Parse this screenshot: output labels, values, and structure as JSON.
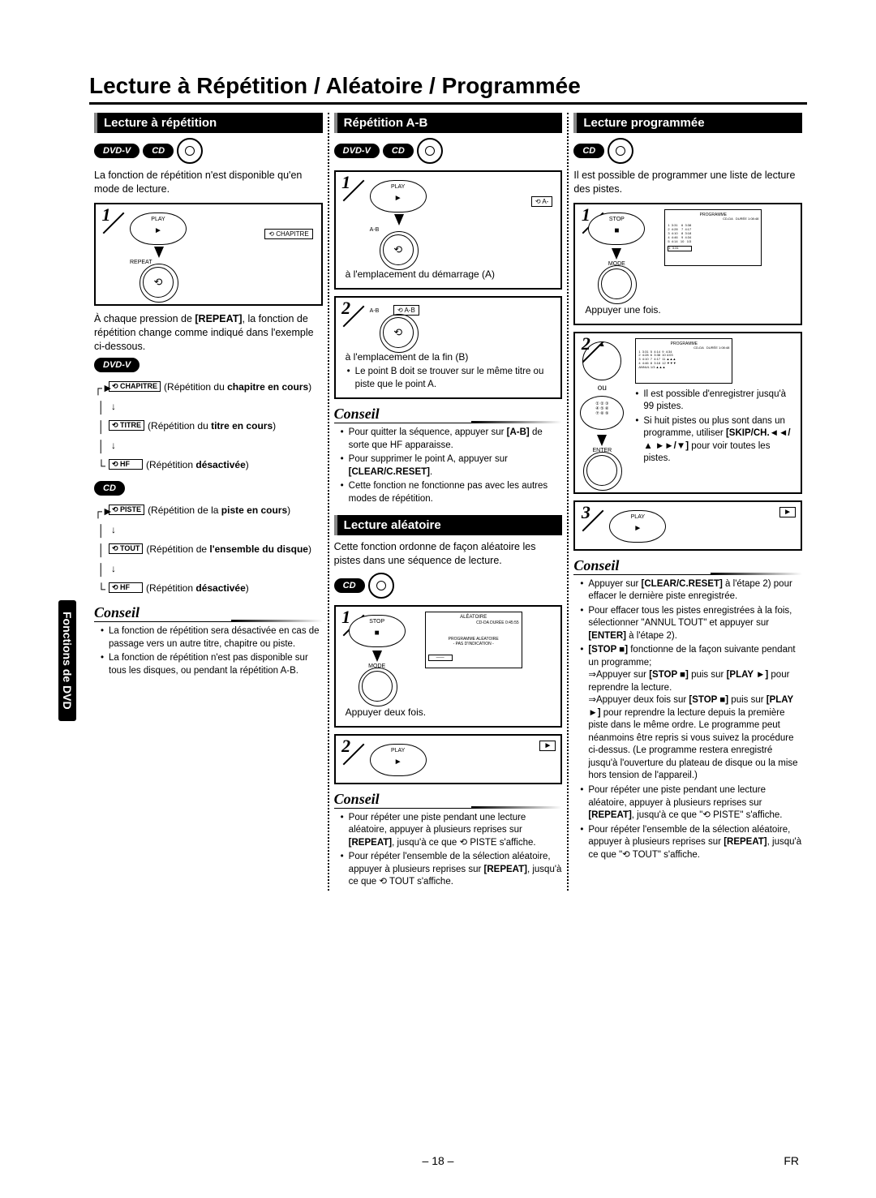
{
  "page": {
    "title": "Lecture à Répétition / Aléatoire / Programmée",
    "number": "– 18 –",
    "lang": "FR",
    "sidetab": "Fonctions de DVD"
  },
  "col1": {
    "header": "Lecture à répétition",
    "intro": "La fonction de répétition n'est disponible qu'en mode de lecture.",
    "step1_play": "PLAY",
    "step1_repeat": "REPEAT",
    "step1_tag": "CHAPITRE",
    "explain": "À chaque pression de [REPEAT], la fonction de répétition change comme indiqué dans l'exemple ci-dessous.",
    "dvd_modes": [
      {
        "label": "CHAPITRE",
        "desc": "(Répétition du <b>chapitre en cours</b>)"
      },
      {
        "label": "TITRE",
        "desc": "(Répétition du <b>titre en cours</b>)"
      },
      {
        "label": "HF",
        "desc": "(Répétition <b>désactivée</b>)"
      }
    ],
    "cd_modes": [
      {
        "label": "PISTE",
        "desc": "(Répétition de la <b>piste en cours</b>)"
      },
      {
        "label": "TOUT",
        "desc": "(Répétition de <b>l'ensemble du disque</b>)"
      },
      {
        "label": "HF",
        "desc": "(Répétition <b>désactivée</b>)"
      }
    ],
    "conseil": "Conseil",
    "tips": [
      "La fonction de répétition sera désactivée en cas de passage vers un autre titre, chapitre ou piste.",
      "La fonction de répétition n'est pas disponible sur tous les disques, ou pendant la répétition A-B."
    ]
  },
  "col2a": {
    "header": "Répétition A-B",
    "step1_play": "PLAY",
    "step1_ab": "A-B",
    "step1_tag": "A-",
    "step1_caption": "à l'emplacement du démarrage (A)",
    "step2_ab": "A-B",
    "step2_tag": "A-B",
    "step2_caption": "à l'emplacement de la fin (B)",
    "step2_note": "Le point B doit se trouver sur le même titre ou piste que le point A.",
    "conseil": "Conseil",
    "tips": [
      "Pour quitter la séquence, appuyer sur <b>[A-B]</b> de sorte que HF apparaisse.",
      "Pour supprimer le point A, appuyer sur <b>[CLEAR/C.RESET]</b>.",
      "Cette fonction ne fonctionne pas avec les autres modes de répétition."
    ]
  },
  "col2b": {
    "header": "Lecture aléatoire",
    "intro": "Cette fonction ordonne de façon aléatoire les pistes dans une séquence de lecture.",
    "step1_stop": "STOP",
    "step1_mode": "MODE",
    "step1_disp_title": "ALÉATOIRE",
    "step1_disp_sub": "CD-DA   DURÉE 0:45:55",
    "step1_disp_body": "PROGRAMME ALÉATOIRE\n- PAS D'INDICATION -",
    "step1_caption": "Appuyer deux fois.",
    "step2_play": "PLAY",
    "conseil": "Conseil",
    "tips": [
      "Pour répéter une piste pendant une lecture aléatoire, appuyer à plusieurs reprises sur <b>[REPEAT]</b>, jusqu'à ce que ⟲ PISTE s'affiche.",
      "Pour répéter l'ensemble de la sélection aléatoire, appuyer à plusieurs reprises sur <b>[REPEAT]</b>, jusqu'à ce que ⟲ TOUT s'affiche."
    ]
  },
  "col3": {
    "header": "Lecture programmée",
    "intro": "Il est possible de programmer une liste de lecture des pistes.",
    "step1_stop": "STOP",
    "step1_mode": "MODE",
    "step1_disp_title": "PROGRAMME",
    "step1_caption": "Appuyer une fois.",
    "step2_enter": "ENTER",
    "step2_or": "ou",
    "step2_notes": [
      "Il est possible d'enregistrer jusqu'à 99 pistes.",
      "Si huit pistes ou plus sont dans un programme, utiliser <b>[SKIP/CH.◄◄/▲ ►►/▼]</b> pour voir toutes les pistes."
    ],
    "step3_play": "PLAY",
    "conseil": "Conseil",
    "tips": [
      "Appuyer sur <b>[CLEAR/C.RESET]</b> à l'étape 2) pour effacer le dernière piste enregistrée.",
      "Pour effacer tous les pistes enregistrées à la fois, sélectionner \"ANNUL TOUT\" et appuyer sur <b>[ENTER]</b> à l'étape 2).",
      "<b>[STOP ■]</b> fonctionne de la façon suivante pendant un programme;<br>⇒Appuyer sur <b>[STOP ■]</b> puis sur <b>[PLAY ►]</b> pour reprendre la lecture.<br>⇒Appuyer deux fois sur <b>[STOP ■]</b> puis sur <b>[PLAY ►]</b> pour reprendre la lecture depuis la première piste dans le même ordre. Le programme peut néanmoins être repris si vous suivez la procédure ci-dessus. (Le programme restera enregistré jusqu'à l'ouverture du plateau de disque ou la mise hors tension de l'appareil.)",
      "Pour répéter une piste pendant une lecture aléatoire, appuyer à plusieurs reprises sur <b>[REPEAT]</b>, jusqu'à ce que \"⟲ PISTE\" s'affiche.",
      "Pour répéter l'ensemble de la sélection aléatoire, appuyer à plusieurs reprises sur <b>[REPEAT]</b>, jusqu'à ce que \"⟲ TOUT\" s'affiche."
    ]
  }
}
